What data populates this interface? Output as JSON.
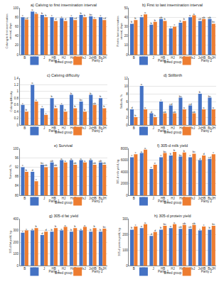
{
  "chart_data": [
    {
      "type": "bar",
      "title": "a) Calving to first insemination interval",
      "y_label": "Calving to first insemination interval, days",
      "x_label": "Breed group",
      "categories": [
        "B",
        "H",
        "J",
        "HB",
        "HJ",
        "HxB",
        "HxJ",
        "JxHB",
        "BxJH"
      ],
      "ylim": [
        0,
        100
      ],
      "yticks": [
        0,
        20,
        40,
        60,
        80,
        100
      ],
      "grid": true,
      "legend": "bottom",
      "series": [
        {
          "name": "Parity 1",
          "color": "#4472c4",
          "values": [
            80,
            92,
            85,
            80,
            78,
            80,
            85,
            82,
            80
          ],
          "letters": [
            "c",
            "a",
            "b",
            "c",
            "c",
            "c",
            "b",
            "bc",
            "c"
          ]
        },
        {
          "name": "Parity 2",
          "color": "#ed7d31",
          "values": [
            75,
            87,
            80,
            72,
            72,
            74,
            80,
            76,
            74
          ],
          "letters": [
            "cd",
            "a",
            "b",
            "d",
            "d",
            "cd",
            "b",
            "c",
            "cd"
          ]
        }
      ]
    },
    {
      "type": "bar",
      "title": "b) First to last insemination interval",
      "y_label": "First to last insemination interval, days",
      "x_label": "Breed group",
      "categories": [
        "B",
        "H",
        "J",
        "HB",
        "HJ",
        "HxB",
        "HxJ",
        "JxHB",
        "BxJH"
      ],
      "ylim": [
        0,
        50
      ],
      "yticks": [
        0,
        10,
        20,
        30,
        40,
        50
      ],
      "grid": true,
      "legend": "bottom",
      "series": [
        {
          "name": "Parity 1",
          "color": "#4472c4",
          "values": [
            33,
            40,
            32,
            38,
            28,
            34,
            40,
            36,
            38
          ],
          "letters": [
            "b",
            "a",
            "b",
            "ab",
            "c",
            "b",
            "a",
            "ab",
            "ab"
          ]
        },
        {
          "name": "Parity 2",
          "color": "#ed7d31",
          "values": [
            37,
            43,
            35,
            36,
            30,
            36,
            42,
            38,
            33
          ],
          "letters": [
            "b",
            "a",
            "b",
            "b",
            "c",
            "b",
            "a",
            "ab",
            "bc"
          ]
        }
      ]
    },
    {
      "type": "bar",
      "title": "c) Calving difficulty",
      "y_label": "Calving difficulty",
      "x_label": "Breed group",
      "categories": [
        "B",
        "H",
        "J",
        "HB",
        "HJ",
        "HxB",
        "HxJ",
        "JxHB",
        "BxJH"
      ],
      "ylim": [
        0,
        1.4
      ],
      "yticks": [
        0,
        0.2,
        0.4,
        0.6,
        0.8,
        1,
        1.2,
        1.4
      ],
      "grid": true,
      "legend": "bottom",
      "series": [
        {
          "name": "Parity 1",
          "color": "#4472c4",
          "values": [
            0.6,
            1.2,
            0.5,
            0.8,
            0.6,
            0.9,
            0.7,
            0.9,
            0.8
          ],
          "letters": [
            "c",
            "a",
            "c",
            "b",
            "c",
            "b",
            "bc",
            "b",
            "b"
          ]
        },
        {
          "name": "Parity 2",
          "color": "#ed7d31",
          "values": [
            0.4,
            0.7,
            0.3,
            0.5,
            0.4,
            0.5,
            0.4,
            0.6,
            0.5
          ],
          "letters": [
            "b",
            "a",
            "c",
            "b",
            "b",
            "b",
            "b",
            "ab",
            "b"
          ]
        }
      ]
    },
    {
      "type": "bar",
      "title": "d) Stillbirth",
      "y_label": "Stillbirth, %",
      "x_label": "Breed group",
      "categories": [
        "B",
        "H",
        "J",
        "HB",
        "HJ",
        "HxB",
        "HxJ",
        "JxHB",
        "BxJH"
      ],
      "ylim": [
        0,
        12
      ],
      "yticks": [
        0,
        2,
        4,
        6,
        8,
        10,
        12
      ],
      "grid": true,
      "legend": "bottom",
      "series": [
        {
          "name": "Parity 1",
          "color": "#4472c4",
          "values": [
            4,
            10,
            3,
            6,
            5,
            7,
            5,
            8,
            7
          ],
          "letters": [
            "d",
            "a",
            "d",
            "c",
            "cd",
            "bc",
            "cd",
            "b",
            "bc"
          ]
        },
        {
          "name": "Parity 2",
          "color": "#ed7d31",
          "values": [
            2,
            4,
            2,
            3,
            3,
            4,
            3,
            4,
            4
          ],
          "letters": [
            "b",
            "a",
            "b",
            "ab",
            "ab",
            "a",
            "ab",
            "a",
            "a"
          ]
        }
      ]
    },
    {
      "type": "bar",
      "title": "e) Survival",
      "y_label": "Survival, %",
      "x_label": "Breed group",
      "categories": [
        "B",
        "H",
        "J",
        "HB",
        "HJ",
        "HxB",
        "HxJ",
        "JxHB",
        "BxJH"
      ],
      "ylim": [
        80,
        100
      ],
      "yticks": [
        80,
        84,
        88,
        92,
        96,
        100
      ],
      "grid": true,
      "legend": "bottom",
      "series": [
        {
          "name": "Parity 1",
          "color": "#4472c4",
          "values": [
            92,
            90,
            93,
            94,
            95,
            95,
            95,
            95,
            94
          ],
          "letters": [
            "c",
            "d",
            "bc",
            "ab",
            "a",
            "a",
            "a",
            "a",
            "ab"
          ]
        },
        {
          "name": "Parity 2",
          "color": "#ed7d31",
          "values": [
            90,
            86,
            92,
            92,
            94,
            93,
            94,
            93,
            93
          ],
          "letters": [
            "b",
            "c",
            "ab",
            "ab",
            "a",
            "ab",
            "a",
            "ab",
            "ab"
          ]
        }
      ]
    },
    {
      "type": "bar",
      "title": "f) 305-d milk yield",
      "y_label": "305-d milk yield, kg",
      "x_label": "Breed group",
      "categories": [
        "B",
        "H",
        "J",
        "HB",
        "HJ",
        "HxB",
        "HxJ",
        "JxHB",
        "BxJH"
      ],
      "ylim": [
        0,
        8000
      ],
      "yticks": [
        0,
        2000,
        4000,
        6000,
        8000
      ],
      "grid": true,
      "legend": "bottom",
      "series": [
        {
          "name": "Parity 1",
          "color": "#4472c4",
          "values": [
            6500,
            7200,
            4500,
            6500,
            6800,
            6600,
            6500,
            6000,
            6200
          ],
          "letters": [
            "c",
            "a",
            "e",
            "c",
            "b",
            "bc",
            "c",
            "d",
            "cd"
          ]
        },
        {
          "name": "Parity 2",
          "color": "#ed7d31",
          "values": [
            7000,
            7800,
            5200,
            7200,
            7400,
            7300,
            7100,
            6800,
            7000
          ],
          "letters": [
            "c",
            "a",
            "e",
            "bc",
            "b",
            "b",
            "bc",
            "d",
            "c"
          ]
        }
      ]
    },
    {
      "type": "bar",
      "title": "g) 305-d fat yield",
      "y_label": "305-d fat yield, kg",
      "x_label": "Breed group",
      "categories": [
        "B",
        "H",
        "J",
        "HB",
        "HJ",
        "HxB",
        "HxJ",
        "JxHB",
        "BxJH"
      ],
      "ylim": [
        0,
        400
      ],
      "yticks": [
        0,
        100,
        200,
        300,
        400
      ],
      "grid": true,
      "legend": "bottom",
      "series": [
        {
          "name": "Parity 1",
          "color": "#4472c4",
          "values": [
            280,
            300,
            260,
            290,
            300,
            290,
            300,
            290,
            290
          ],
          "letters": [
            "c",
            "a",
            "d",
            "b",
            "a",
            "b",
            "a",
            "b",
            "b"
          ]
        },
        {
          "name": "Parity 2",
          "color": "#ed7d31",
          "values": [
            300,
            320,
            290,
            320,
            330,
            320,
            330,
            320,
            315
          ],
          "letters": [
            "c",
            "b",
            "d",
            "b",
            "a",
            "b",
            "a",
            "b",
            "bc"
          ]
        }
      ]
    },
    {
      "type": "bar",
      "title": "h) 305-d protein yield",
      "y_label": "305-d protein yield, kg",
      "x_label": "Breed group",
      "categories": [
        "B",
        "H",
        "J",
        "HB",
        "HJ",
        "HxB",
        "HxJ",
        "JxHB",
        "BxJH"
      ],
      "ylim": [
        0,
        300
      ],
      "yticks": [
        0,
        100,
        200,
        300
      ],
      "grid": true,
      "legend": "bottom",
      "series": [
        {
          "name": "Parity 1",
          "color": "#4472c4",
          "values": [
            230,
            240,
            190,
            230,
            240,
            235,
            235,
            225,
            230
          ],
          "letters": [
            "b",
            "a",
            "d",
            "b",
            "a",
            "ab",
            "ab",
            "c",
            "b"
          ]
        },
        {
          "name": "Parity 2",
          "color": "#ed7d31",
          "values": [
            250,
            265,
            215,
            255,
            265,
            260,
            260,
            250,
            255
          ],
          "letters": [
            "c",
            "a",
            "d",
            "bc",
            "a",
            "ab",
            "ab",
            "c",
            "bc"
          ]
        }
      ]
    }
  ]
}
